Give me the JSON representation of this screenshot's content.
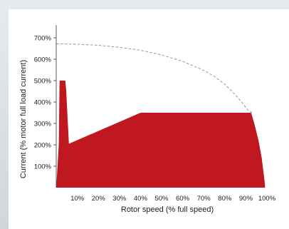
{
  "chart_data": {
    "type": "area",
    "title": "",
    "xlabel": "Rotor speed (% full speed)",
    "ylabel": "Current (% motor full load current)",
    "xlim": [
      0,
      100
    ],
    "ylim": [
      0,
      740
    ],
    "x_ticks": [
      "10%",
      "20%",
      "30%",
      "40%",
      "50%",
      "60%",
      "70%",
      "80%",
      "90%",
      "100%"
    ],
    "x_tick_values": [
      10,
      20,
      30,
      40,
      50,
      60,
      70,
      80,
      90,
      100
    ],
    "y_ticks": [
      "100%",
      "200%",
      "300%",
      "400%",
      "500%",
      "600%",
      "700%"
    ],
    "y_tick_values": [
      100,
      200,
      300,
      400,
      500,
      600,
      700
    ],
    "grid": false,
    "series": [
      {
        "style": "dashed-line",
        "color": "#8a8a8a",
        "x": [
          0,
          10,
          20,
          30,
          40,
          50,
          60,
          70,
          75,
          80,
          85,
          88,
          91,
          93
        ],
        "y": [
          672,
          670,
          665,
          656,
          642,
          620,
          590,
          548,
          520,
          483,
          434,
          400,
          362,
          350
        ]
      },
      {
        "style": "filled-area",
        "color": "#c01820",
        "x": [
          0,
          0.3,
          1.2,
          1.6,
          4.3,
          4.7,
          6,
          40,
          92.5,
          94,
          96,
          97.5,
          98.5,
          99.1,
          99.1,
          0
        ],
        "y": [
          0,
          50,
          200,
          500,
          500,
          460,
          205,
          350,
          350,
          300,
          220,
          140,
          60,
          10,
          0,
          0
        ]
      }
    ]
  }
}
